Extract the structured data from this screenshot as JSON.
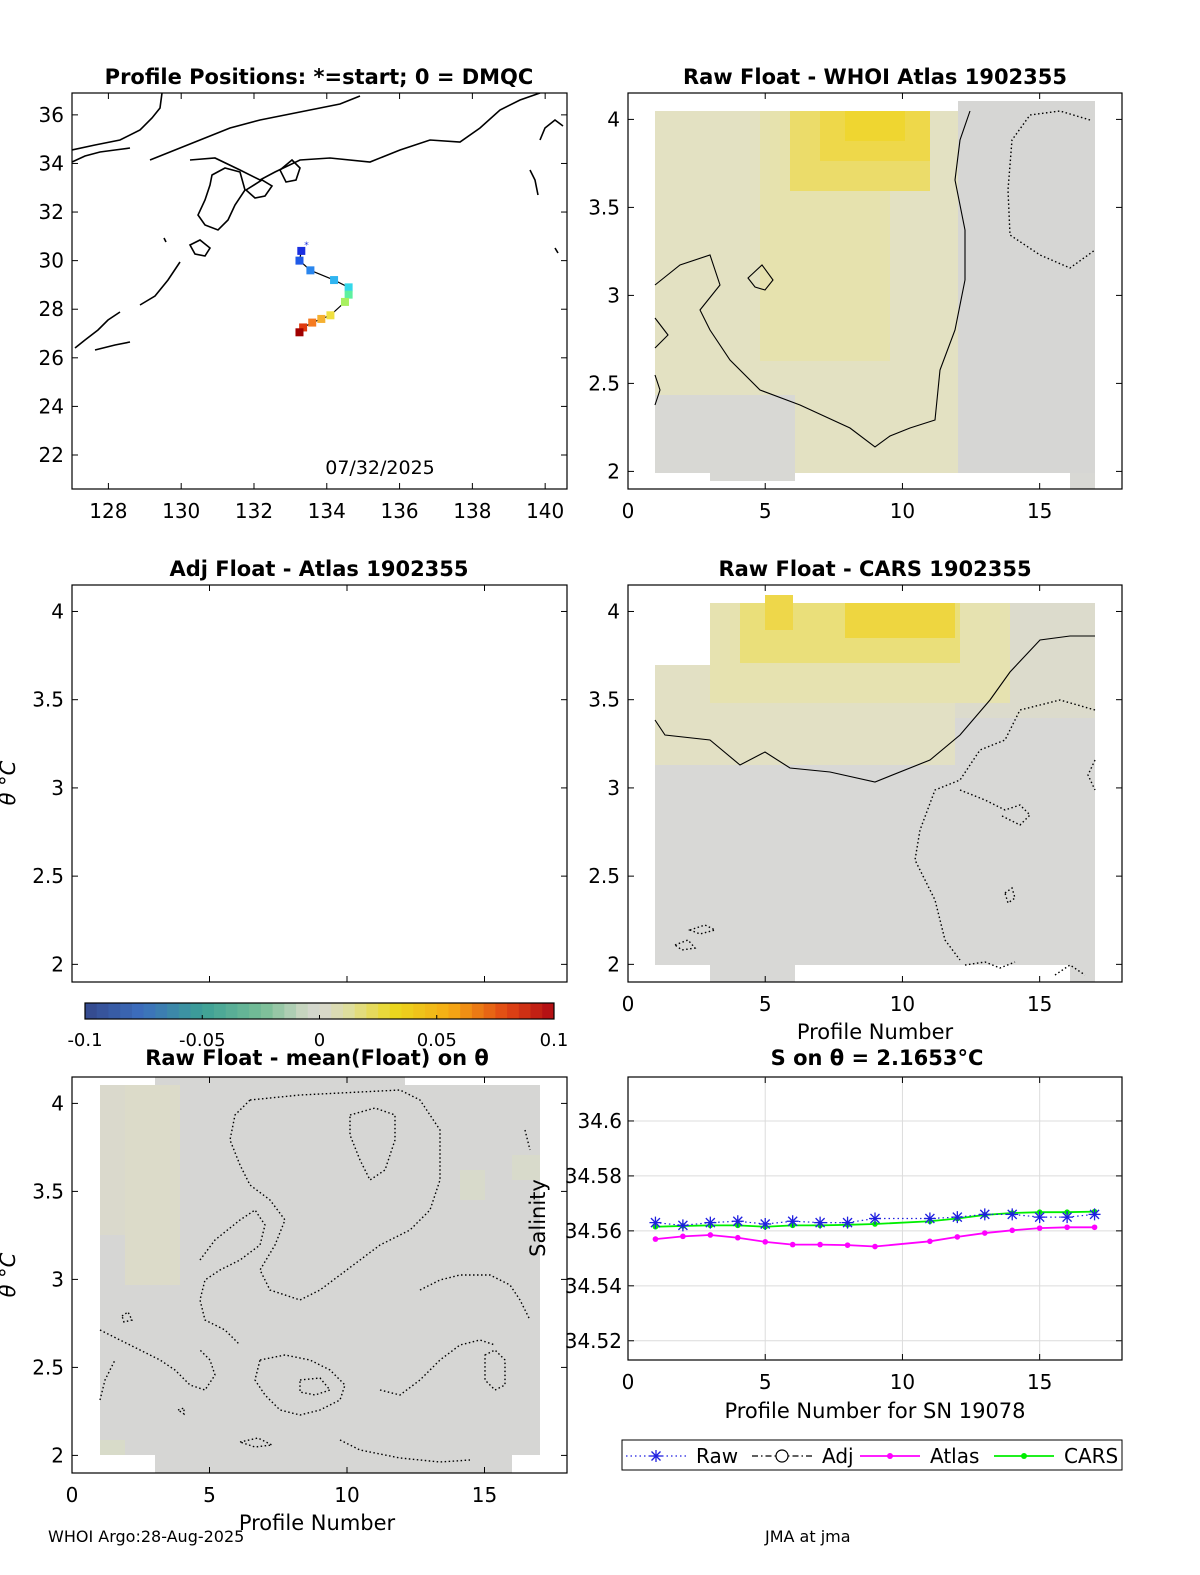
{
  "colors": {
    "gray": "#d6d6d6",
    "yellow_light": "#e6e3b8",
    "yellow": "#e9dd3a",
    "raw": "#1f1fe0",
    "atlas": "#ff00ff",
    "cars": "#00ee00",
    "coast": "#000000"
  },
  "footer": {
    "left": "WHOI Argo:28-Aug-2025",
    "right": "JMA at jma"
  },
  "chart_data": [
    {
      "id": "map",
      "type": "scatter",
      "title": "Profile Positions: *=start; 0 = DMQC",
      "xlabel": "",
      "ylabel": "",
      "xlim": [
        127,
        140.6
      ],
      "ylim": [
        20.6,
        36.9
      ],
      "xticks": [
        "128",
        "130",
        "132",
        "134",
        "136",
        "138",
        "140"
      ],
      "yticks": [
        "22",
        "24",
        "26",
        "28",
        "30",
        "32",
        "34",
        "36"
      ],
      "annotation": "07/32/2025",
      "start_marker": "*",
      "track": {
        "lon": [
          133.3,
          133.25,
          133.55,
          134.2,
          134.6,
          134.6,
          134.5,
          134.1,
          133.85,
          133.6,
          133.35,
          133.25
        ],
        "lat": [
          30.4,
          30.0,
          29.6,
          29.2,
          28.9,
          28.6,
          28.3,
          27.75,
          27.6,
          27.45,
          27.25,
          27.05
        ],
        "colors": [
          "#1a2fe0",
          "#1f5ae8",
          "#2a86ee",
          "#2fb4f0",
          "#34d8ea",
          "#5ef0a0",
          "#a8f060",
          "#f0e040",
          "#f5b030",
          "#f57a20",
          "#e03a10",
          "#a00000"
        ]
      }
    },
    {
      "id": "raw_atlas",
      "type": "heatmap",
      "title": "Raw Float - WHOI Atlas  1902355",
      "xlabel": "",
      "ylabel": "",
      "xlim": [
        0,
        18
      ],
      "ylim": [
        1.9,
        4.15
      ],
      "xticks": [
        "0",
        "5",
        "10",
        "15"
      ],
      "yticks": [
        "2",
        "2.5",
        "3",
        "3.5",
        "4"
      ]
    },
    {
      "id": "adj_atlas",
      "type": "heatmap",
      "title": "Adj Float - Atlas  1902355",
      "xlabel": "",
      "ylabel": "θ °C",
      "xlim": [
        0,
        18
      ],
      "ylim": [
        1.9,
        4.15
      ],
      "xticks": [
        "",
        "",
        "",
        ""
      ],
      "yticks": [
        "2",
        "2.5",
        "3",
        "3.5",
        "4"
      ]
    },
    {
      "id": "raw_cars",
      "type": "heatmap",
      "title": "Raw Float - CARS  1902355",
      "xlabel": "Profile Number",
      "ylabel": "",
      "xlim": [
        0,
        18
      ],
      "ylim": [
        1.9,
        4.15
      ],
      "xticks": [
        "0",
        "5",
        "10",
        "15"
      ],
      "yticks": [
        "2",
        "2.5",
        "3",
        "3.5",
        "4"
      ]
    },
    {
      "id": "colorbar",
      "type": "heatmap",
      "title": "",
      "range": [
        -0.1,
        0.1
      ],
      "ticks": [
        "-0.1",
        "-0.05",
        "0",
        "0.05",
        "0.1"
      ]
    },
    {
      "id": "raw_mean",
      "type": "heatmap",
      "title": "Raw Float - mean(Float) on θ",
      "xlabel": "Profile Number",
      "ylabel": "θ °C",
      "xlim": [
        0,
        18
      ],
      "ylim": [
        1.9,
        4.15
      ],
      "xticks": [
        "0",
        "5",
        "10",
        "15"
      ],
      "yticks": [
        "2",
        "2.5",
        "3",
        "3.5",
        "4"
      ]
    },
    {
      "id": "salinity",
      "type": "line",
      "title": "S on θ = 2.1653°C",
      "xlabel": "Profile Number for SN 19078",
      "ylabel": "Salinity",
      "xlim": [
        0,
        18
      ],
      "ylim": [
        34.513,
        34.616
      ],
      "grid": true,
      "xticks": [
        "0",
        "5",
        "10",
        "15"
      ],
      "yticks": [
        "34.52",
        "34.54",
        "34.56",
        "34.58",
        "34.6"
      ],
      "legend": [
        "Raw",
        "Adj",
        "Atlas",
        "CARS"
      ],
      "x": [
        1,
        2,
        3,
        4,
        5,
        6,
        7,
        8,
        9,
        11,
        12,
        13,
        14,
        15,
        16,
        17
      ],
      "series": [
        {
          "name": "Raw",
          "values": [
            34.563,
            34.562,
            34.563,
            34.5635,
            34.5625,
            34.5635,
            34.563,
            34.563,
            34.5645,
            34.5645,
            34.565,
            34.566,
            34.566,
            34.565,
            34.565,
            34.566
          ]
        },
        {
          "name": "Atlas",
          "values": [
            34.557,
            34.558,
            34.5585,
            34.5575,
            34.556,
            34.555,
            34.555,
            34.5548,
            34.5543,
            34.5562,
            34.5578,
            34.5592,
            34.5602,
            34.561,
            34.5613,
            34.5613
          ]
        },
        {
          "name": "CARS",
          "values": [
            34.5615,
            34.5618,
            34.562,
            34.562,
            34.5615,
            34.562,
            34.562,
            34.5622,
            34.5625,
            34.5635,
            34.5645,
            34.5658,
            34.5665,
            34.5668,
            34.5668,
            34.567
          ]
        }
      ]
    }
  ]
}
